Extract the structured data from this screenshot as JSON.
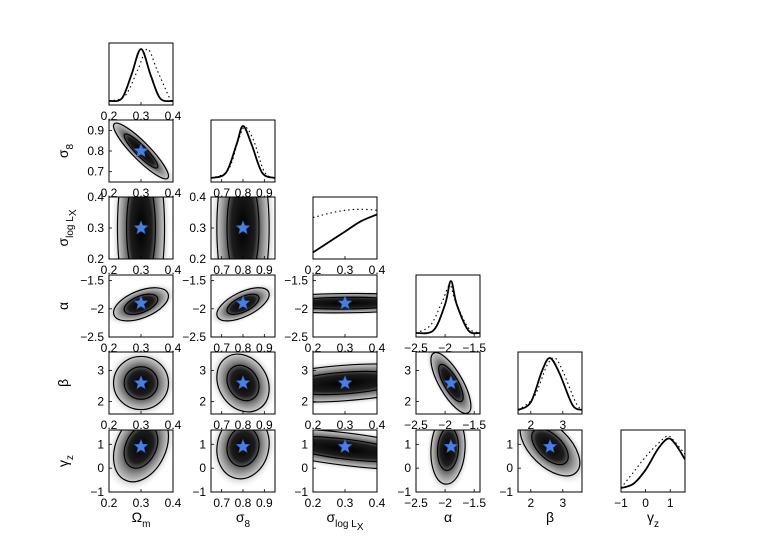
{
  "chart_data": {
    "type": "corner",
    "parameters": [
      {
        "key": "Om",
        "label": "Ω",
        "sub": "m",
        "range": [
          0.2,
          0.4
        ],
        "ticks": [
          "0.2",
          "0.3",
          "0.4"
        ],
        "fiducial": 0.3
      },
      {
        "key": "s8",
        "label": "σ",
        "sub": "8",
        "range": [
          0.65,
          0.95
        ],
        "ticks": [
          "0.7",
          "0.8",
          "0.9"
        ],
        "fiducial": 0.8
      },
      {
        "key": "slog",
        "label": "σ",
        "sub": "log L",
        "subsub": "X",
        "range": [
          0.2,
          0.4
        ],
        "ticks": [
          "0.2",
          "0.3",
          "0.4"
        ],
        "fiducial": 0.3
      },
      {
        "key": "alpha",
        "label": "α",
        "sub": "",
        "range": [
          -2.5,
          -1.4
        ],
        "ticks": [
          "−2.5",
          "−2",
          "−1.5"
        ],
        "fiducial": -1.9
      },
      {
        "key": "beta",
        "label": "β",
        "sub": "",
        "range": [
          1.6,
          3.6
        ],
        "ticks": [
          "2",
          "3"
        ],
        "fiducial": 2.6
      },
      {
        "key": "gz",
        "label": "γ",
        "sub": "z",
        "range": [
          -1.0,
          1.6
        ],
        "ticks": [
          "−1",
          "0",
          "1"
        ],
        "fiducial": 0.9
      }
    ],
    "row_ticks": {
      "s8": [
        "0.9",
        "0.8",
        "0.7"
      ],
      "slog": [
        "0.4",
        "0.3",
        "0.2"
      ],
      "alpha": [
        "−1.5",
        "−2",
        "−2.5"
      ],
      "beta": [
        "3",
        "2"
      ],
      "gz": [
        "1",
        "0",
        "−1"
      ]
    },
    "marginals": [
      {
        "param": "Om",
        "posterior": [
          [
            0.2,
            0.0
          ],
          [
            0.24,
            0.05
          ],
          [
            0.27,
            0.5
          ],
          [
            0.3,
            1.0
          ],
          [
            0.33,
            0.5
          ],
          [
            0.36,
            0.05
          ],
          [
            0.4,
            0.0
          ]
        ],
        "prior_dotted": [
          [
            0.2,
            0.0
          ],
          [
            0.25,
            0.1
          ],
          [
            0.29,
            0.6
          ],
          [
            0.32,
            1.0
          ],
          [
            0.35,
            0.6
          ],
          [
            0.39,
            0.05
          ],
          [
            0.4,
            0.0
          ]
        ]
      },
      {
        "param": "s8",
        "posterior": [
          [
            0.65,
            0.0
          ],
          [
            0.72,
            0.1
          ],
          [
            0.77,
            0.65
          ],
          [
            0.8,
            1.0
          ],
          [
            0.84,
            0.65
          ],
          [
            0.89,
            0.1
          ],
          [
            0.95,
            0.0
          ]
        ],
        "prior_dotted": [
          [
            0.65,
            0.0
          ],
          [
            0.73,
            0.15
          ],
          [
            0.78,
            0.75
          ],
          [
            0.81,
            0.98
          ],
          [
            0.85,
            0.72
          ],
          [
            0.9,
            0.12
          ],
          [
            0.95,
            0.0
          ]
        ]
      },
      {
        "param": "slog",
        "posterior": [
          [
            0.2,
            0.05
          ],
          [
            0.25,
            0.25
          ],
          [
            0.3,
            0.45
          ],
          [
            0.35,
            0.65
          ],
          [
            0.4,
            0.78
          ]
        ],
        "prior_dotted": [
          [
            0.2,
            0.72
          ],
          [
            0.25,
            0.8
          ],
          [
            0.3,
            0.86
          ],
          [
            0.35,
            0.88
          ],
          [
            0.4,
            0.86
          ]
        ]
      },
      {
        "param": "alpha",
        "posterior": [
          [
            -2.5,
            0.0
          ],
          [
            -2.2,
            0.05
          ],
          [
            -2.0,
            0.55
          ],
          [
            -1.9,
            1.0
          ],
          [
            -1.8,
            0.55
          ],
          [
            -1.6,
            0.05
          ],
          [
            -1.4,
            0.0
          ]
        ],
        "prior_dotted": [
          [
            -2.5,
            0.0
          ],
          [
            -2.25,
            0.15
          ],
          [
            -2.05,
            0.6
          ],
          [
            -1.92,
            0.92
          ],
          [
            -1.82,
            0.6
          ],
          [
            -1.6,
            0.1
          ],
          [
            -1.4,
            0.0
          ]
        ]
      },
      {
        "param": "beta",
        "posterior": [
          [
            1.6,
            0.0
          ],
          [
            2.0,
            0.15
          ],
          [
            2.35,
            0.75
          ],
          [
            2.6,
            1.0
          ],
          [
            2.9,
            0.7
          ],
          [
            3.3,
            0.1
          ],
          [
            3.6,
            0.0
          ]
        ],
        "prior_dotted": [
          [
            1.6,
            0.0
          ],
          [
            2.1,
            0.25
          ],
          [
            2.5,
            0.85
          ],
          [
            2.75,
            1.0
          ],
          [
            3.0,
            0.75
          ],
          [
            3.4,
            0.15
          ],
          [
            3.6,
            0.0
          ]
        ]
      },
      {
        "param": "gz",
        "posterior": [
          [
            -1.0,
            0.0
          ],
          [
            -0.5,
            0.08
          ],
          [
            0.0,
            0.35
          ],
          [
            0.5,
            0.75
          ],
          [
            0.9,
            0.95
          ],
          [
            1.2,
            0.85
          ],
          [
            1.6,
            0.55
          ]
        ],
        "prior_dotted": [
          [
            -1.0,
            0.0
          ],
          [
            -0.5,
            0.3
          ],
          [
            0.0,
            0.6
          ],
          [
            0.5,
            0.85
          ],
          [
            0.9,
            1.0
          ],
          [
            1.2,
            0.88
          ],
          [
            1.6,
            0.65
          ]
        ]
      }
    ],
    "joint_contours": [
      {
        "x": "Om",
        "y": "s8",
        "center": [
          0.3,
          0.8
        ],
        "sd": [
          0.035,
          0.055
        ],
        "corr": -0.9
      },
      {
        "x": "Om",
        "y": "slog",
        "center": [
          0.3,
          0.3
        ],
        "sd": [
          0.03,
          0.12
        ],
        "corr": 0.0
      },
      {
        "x": "s8",
        "y": "slog",
        "center": [
          0.8,
          0.3
        ],
        "sd": [
          0.05,
          0.12
        ],
        "corr": 0.0
      },
      {
        "x": "Om",
        "y": "alpha",
        "center": [
          0.3,
          -1.92
        ],
        "sd": [
          0.035,
          0.12
        ],
        "corr": 0.5
      },
      {
        "x": "s8",
        "y": "alpha",
        "center": [
          0.8,
          -1.92
        ],
        "sd": [
          0.05,
          0.12
        ],
        "corr": 0.6
      },
      {
        "x": "slog",
        "y": "alpha",
        "center": [
          0.3,
          -1.9
        ],
        "sd": [
          0.12,
          0.07
        ],
        "corr": 0.1
      },
      {
        "x": "Om",
        "y": "beta",
        "center": [
          0.3,
          2.6
        ],
        "sd": [
          0.035,
          0.35
        ],
        "corr": 0.0
      },
      {
        "x": "s8",
        "y": "beta",
        "center": [
          0.8,
          2.6
        ],
        "sd": [
          0.05,
          0.38
        ],
        "corr": -0.2
      },
      {
        "x": "slog",
        "y": "beta",
        "center": [
          0.3,
          2.6
        ],
        "sd": [
          0.12,
          0.25
        ],
        "corr": 0.35
      },
      {
        "x": "alpha",
        "y": "beta",
        "center": [
          -1.9,
          2.6
        ],
        "sd": [
          0.14,
          0.4
        ],
        "corr": -0.75
      },
      {
        "x": "Om",
        "y": "gz",
        "center": [
          0.3,
          0.9
        ],
        "sd": [
          0.035,
          0.6
        ],
        "corr": 0.3
      },
      {
        "x": "s8",
        "y": "gz",
        "center": [
          0.8,
          0.9
        ],
        "sd": [
          0.05,
          0.55
        ],
        "corr": 0.1
      },
      {
        "x": "slog",
        "y": "gz",
        "center": [
          0.3,
          0.8
        ],
        "sd": [
          0.13,
          0.35
        ],
        "corr": -0.6
      },
      {
        "x": "alpha",
        "y": "gz",
        "center": [
          -1.95,
          0.8
        ],
        "sd": [
          0.12,
          0.6
        ],
        "corr": 0.1
      },
      {
        "x": "beta",
        "y": "gz",
        "center": [
          2.6,
          0.9
        ],
        "sd": [
          0.38,
          0.5
        ],
        "corr": -0.55
      }
    ],
    "fiducial_marker": {
      "shape": "star",
      "color": "#4a7fe0"
    },
    "contour_levels": [
      "68%",
      "95%"
    ],
    "colors": {
      "posterior_line": "#000000",
      "fill_dark": "#000000",
      "fill_light": "#ffffff",
      "star": "#4a7fe0"
    },
    "grid": false,
    "legend": "none",
    "title": ""
  }
}
